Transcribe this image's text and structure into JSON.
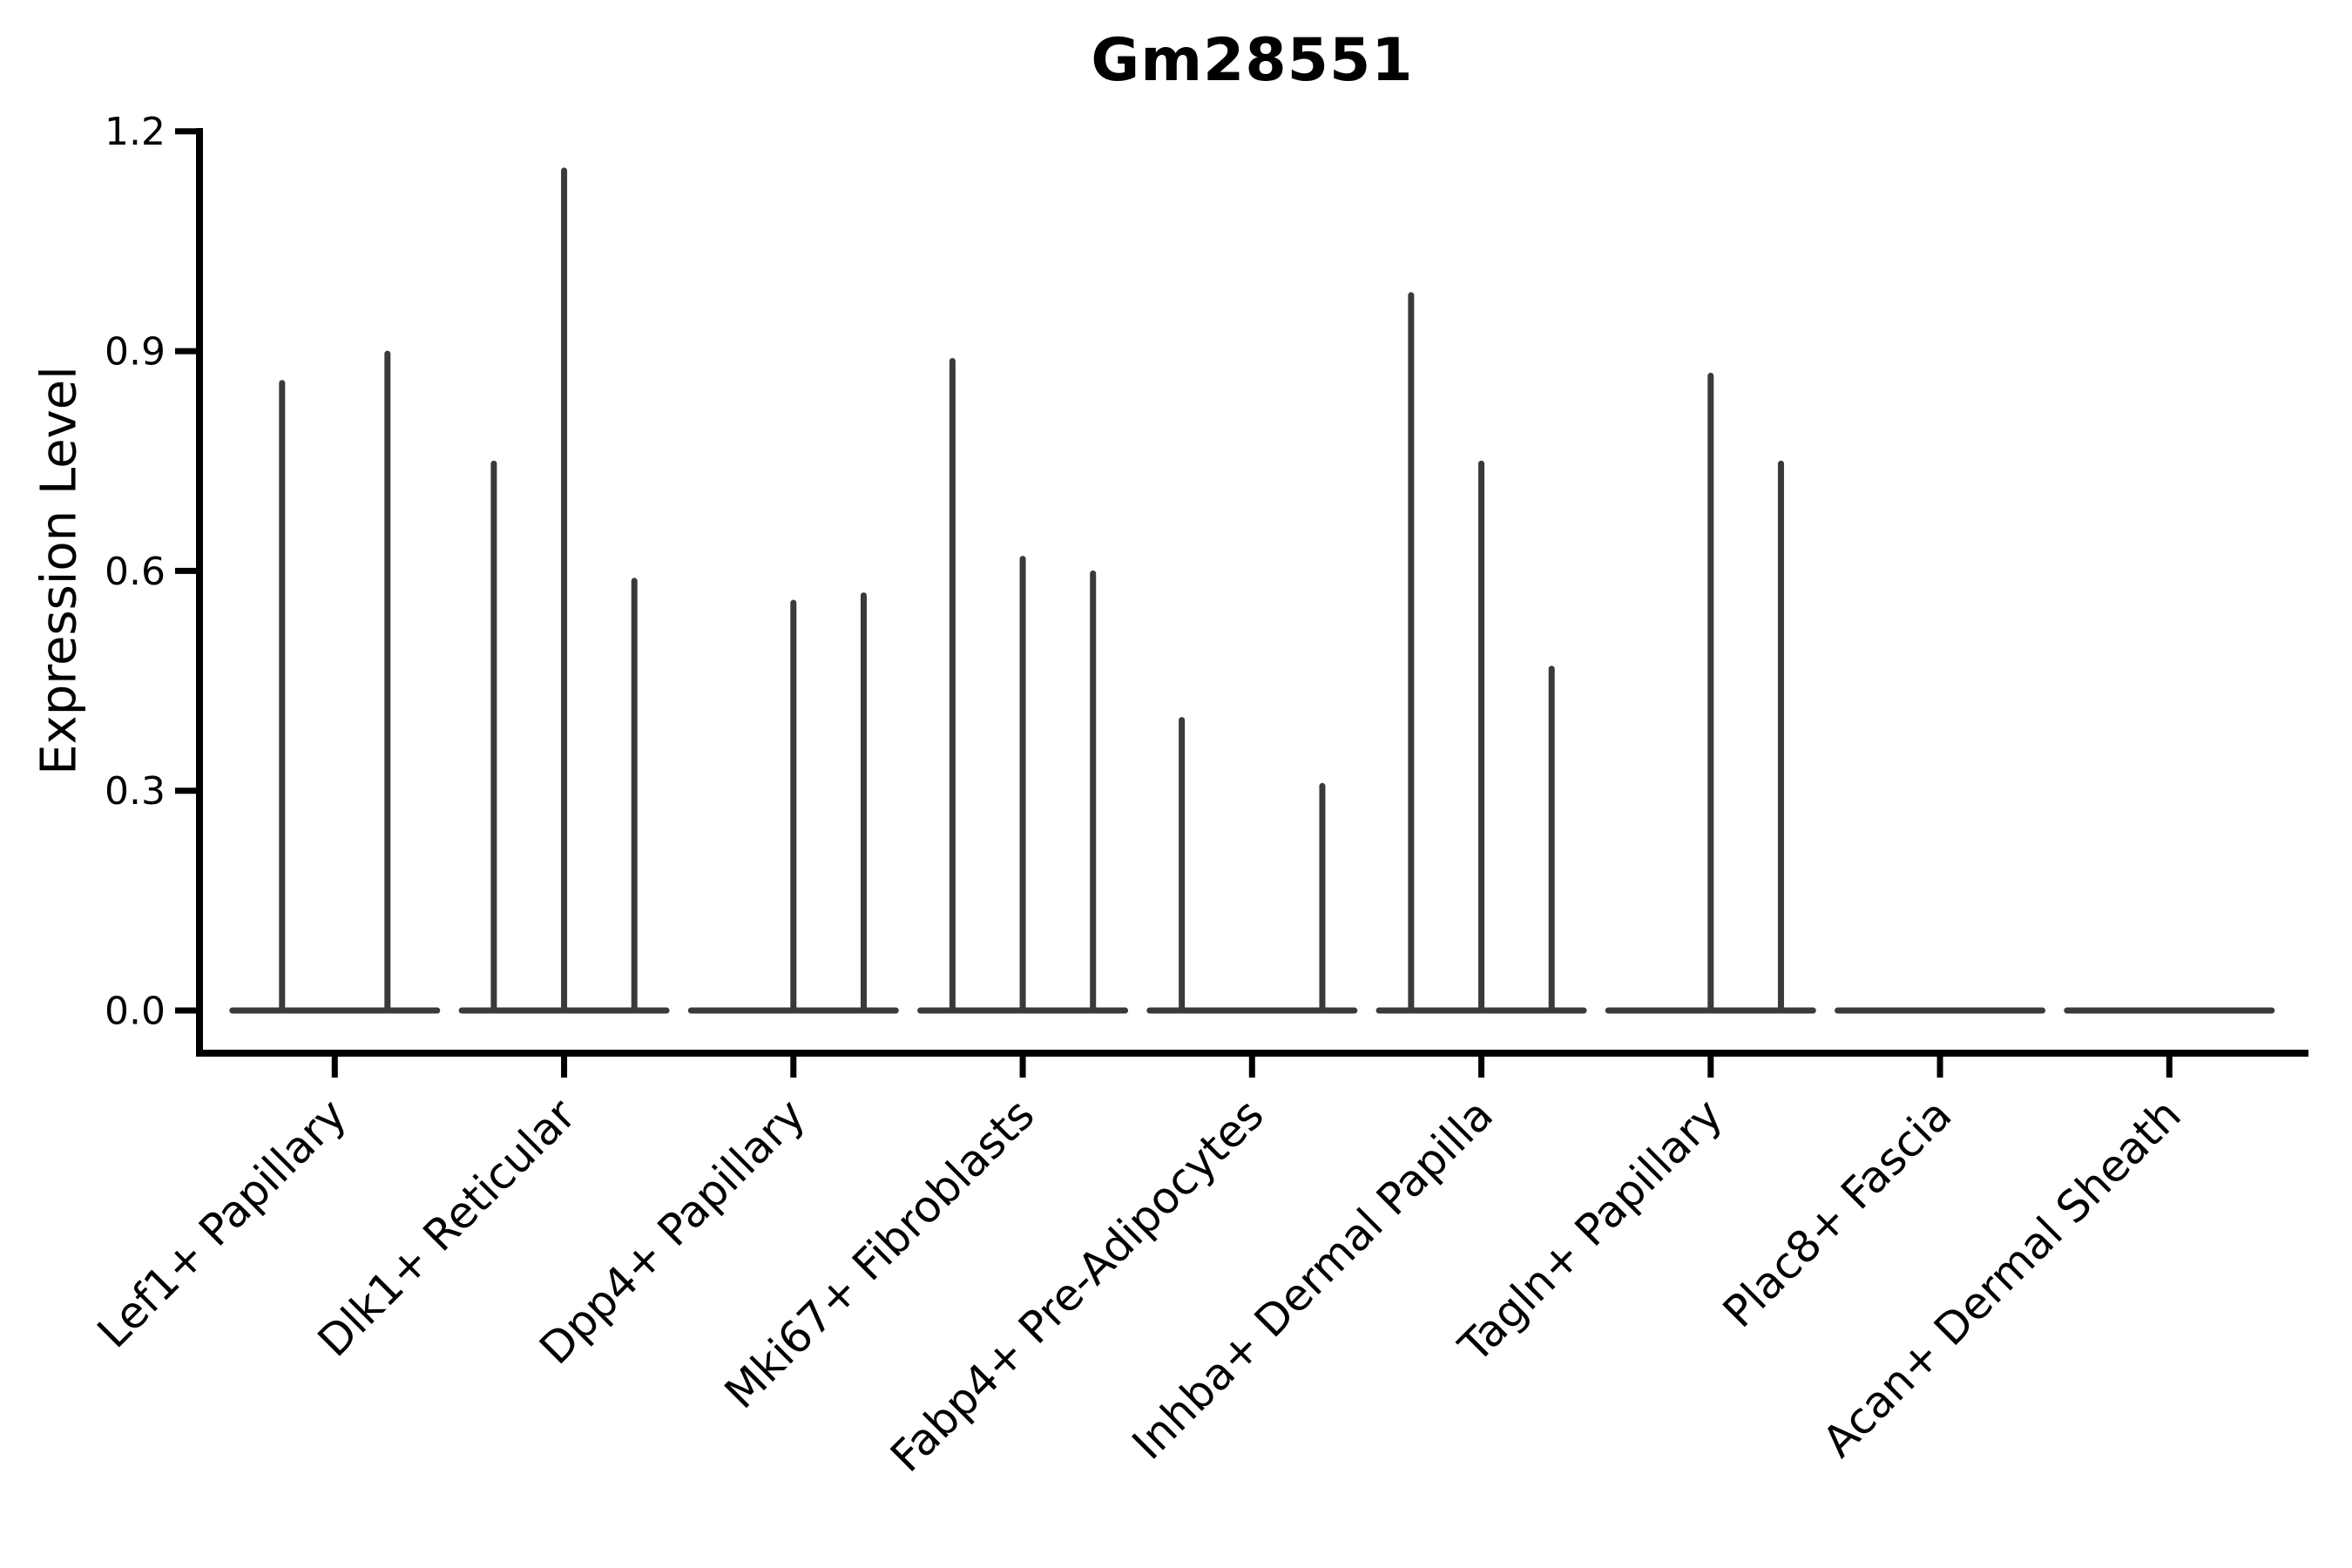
{
  "figure": {
    "title": "Gm28551",
    "ylabel": "Expression Level"
  },
  "chart_data": {
    "type": "violin",
    "title": "Gm28551",
    "xlabel": "",
    "ylabel": "Expression Level",
    "ylim": [
      -0.06,
      1.2
    ],
    "yticks": [
      0.0,
      0.3,
      0.6,
      0.9,
      1.2
    ],
    "ytick_labels": [
      "0.0",
      "0.3",
      "0.6",
      "0.9",
      "1.2"
    ],
    "grid": false,
    "legend": null,
    "categories": [
      "Lef1+ Papillary",
      "Dlk1+ Reticular",
      "Dpp4+ Papillary",
      "Mki67+ Fibroblasts",
      "Fabp4+ Pre-Adipocytes",
      "Inhba+ Dermal Papilla",
      "Tagln+ Papillary",
      "Plac8+ Fascia",
      "Acan+ Dermal Sheath"
    ],
    "violins": [
      {
        "category": "Lef1+ Papillary",
        "n_groups": 2,
        "spikes": [
          {
            "slot": 0,
            "max": 0.86
          },
          {
            "slot": 1,
            "max": 0.9
          }
        ]
      },
      {
        "category": "Dlk1+ Reticular",
        "n_groups": 3,
        "spikes": [
          {
            "slot": 0,
            "max": 0.75
          },
          {
            "slot": 1,
            "max": 1.15
          },
          {
            "slot": 2,
            "max": 0.59
          }
        ]
      },
      {
        "category": "Dpp4+ Papillary",
        "n_groups": 3,
        "spikes": [
          {
            "slot": 1,
            "max": 0.56
          },
          {
            "slot": 2,
            "max": 0.57
          }
        ]
      },
      {
        "category": "Mki67+ Fibroblasts",
        "n_groups": 3,
        "spikes": [
          {
            "slot": 0,
            "max": 0.89
          },
          {
            "slot": 1,
            "max": 0.62
          },
          {
            "slot": 2,
            "max": 0.6
          }
        ]
      },
      {
        "category": "Fabp4+ Pre-Adipocytes",
        "n_groups": 3,
        "spikes": [
          {
            "slot": 0,
            "max": 0.4
          },
          {
            "slot": 2,
            "max": 0.31
          }
        ]
      },
      {
        "category": "Inhba+ Dermal Papilla",
        "n_groups": 3,
        "spikes": [
          {
            "slot": 0,
            "max": 0.98
          },
          {
            "slot": 1,
            "max": 0.75
          },
          {
            "slot": 2,
            "max": 0.47
          }
        ]
      },
      {
        "category": "Tagln+ Papillary",
        "n_groups": 3,
        "spikes": [
          {
            "slot": 1,
            "max": 0.87
          },
          {
            "slot": 2,
            "max": 0.75
          }
        ]
      },
      {
        "category": "Plac8+ Fascia",
        "n_groups": 3,
        "spikes": []
      },
      {
        "category": "Acan+ Dermal Sheath",
        "n_groups": 3,
        "spikes": []
      }
    ],
    "colors": {
      "violin": "#3a3a3a",
      "axis": "#000000",
      "background": "#ffffff"
    }
  }
}
